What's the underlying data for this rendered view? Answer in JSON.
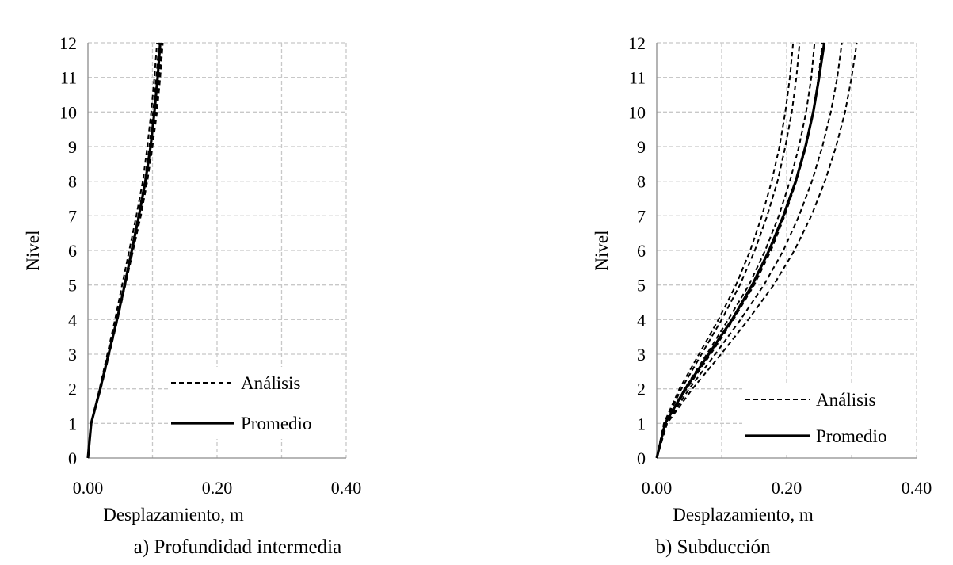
{
  "chart_data": [
    {
      "type": "line",
      "caption": "a) Profundidad intermedia",
      "xlabel": "Desplazamiento, m",
      "ylabel": "Nivel",
      "xlim": [
        0,
        0.4
      ],
      "ylim": [
        0,
        12
      ],
      "x_ticks": [
        "0.00",
        "0.20",
        "0.40"
      ],
      "y_ticks": [
        "0",
        "1",
        "2",
        "3",
        "4",
        "5",
        "6",
        "7",
        "8",
        "9",
        "10",
        "11",
        "12"
      ],
      "grid": "on, dashed",
      "legend_position": "bottom-right",
      "levels": [
        0,
        1,
        2,
        3,
        4,
        5,
        6,
        7,
        8,
        9,
        10,
        11,
        12
      ],
      "series": [
        {
          "name": "Análisis",
          "style": "dashed",
          "values": [
            0,
            0.005,
            0.018,
            0.03,
            0.042,
            0.053,
            0.064,
            0.075,
            0.085,
            0.092,
            0.098,
            0.103,
            0.107
          ]
        },
        {
          "name": "Análisis",
          "style": "dashed",
          "values": [
            0,
            0.005,
            0.019,
            0.032,
            0.044,
            0.056,
            0.067,
            0.078,
            0.088,
            0.095,
            0.101,
            0.106,
            0.11
          ]
        },
        {
          "name": "Análisis",
          "style": "dashed",
          "values": [
            0,
            0.005,
            0.019,
            0.032,
            0.045,
            0.057,
            0.069,
            0.08,
            0.09,
            0.098,
            0.105,
            0.11,
            0.114
          ]
        },
        {
          "name": "Análisis",
          "style": "dashed",
          "values": [
            0,
            0.005,
            0.02,
            0.033,
            0.046,
            0.058,
            0.07,
            0.082,
            0.092,
            0.1,
            0.107,
            0.112,
            0.116
          ]
        },
        {
          "name": "Promedio",
          "style": "solid",
          "values": [
            0,
            0.005,
            0.019,
            0.032,
            0.045,
            0.057,
            0.068,
            0.079,
            0.089,
            0.097,
            0.103,
            0.108,
            0.112
          ]
        }
      ]
    },
    {
      "type": "line",
      "caption": "b) Subducción",
      "xlabel": "Desplazamiento, m",
      "ylabel": "Nivel",
      "xlim": [
        0,
        0.4
      ],
      "ylim": [
        0,
        12
      ],
      "x_ticks": [
        "0.00",
        "0.20",
        "0.40"
      ],
      "y_ticks": [
        "0",
        "1",
        "2",
        "3",
        "4",
        "5",
        "6",
        "7",
        "8",
        "9",
        "10",
        "11",
        "12"
      ],
      "grid": "on, dashed",
      "legend_position": "bottom-right",
      "levels": [
        0,
        1,
        2,
        3,
        4,
        5,
        6,
        7,
        8,
        9,
        10,
        11,
        12
      ],
      "series": [
        {
          "name": "Análisis",
          "style": "dashed",
          "values": [
            0,
            0.011,
            0.035,
            0.065,
            0.095,
            0.122,
            0.144,
            0.162,
            0.177,
            0.189,
            0.198,
            0.205,
            0.21
          ]
        },
        {
          "name": "Análisis",
          "style": "dashed",
          "values": [
            0,
            0.012,
            0.038,
            0.069,
            0.1,
            0.128,
            0.151,
            0.17,
            0.186,
            0.198,
            0.208,
            0.215,
            0.22
          ]
        },
        {
          "name": "Análisis",
          "style": "dashed",
          "values": [
            0,
            0.013,
            0.043,
            0.077,
            0.11,
            0.142,
            0.167,
            0.188,
            0.205,
            0.219,
            0.23,
            0.238,
            0.243
          ]
        },
        {
          "name": "Análisis",
          "style": "dashed",
          "values": [
            0,
            0.014,
            0.046,
            0.083,
            0.118,
            0.15,
            0.176,
            0.197,
            0.215,
            0.23,
            0.241,
            0.249,
            0.255
          ]
        },
        {
          "name": "Análisis",
          "style": "dashed",
          "values": [
            0,
            0.015,
            0.05,
            0.09,
            0.129,
            0.165,
            0.195,
            0.219,
            0.239,
            0.255,
            0.268,
            0.278,
            0.285
          ]
        },
        {
          "name": "Análisis",
          "style": "dashed",
          "values": [
            0,
            0.016,
            0.055,
            0.099,
            0.141,
            0.18,
            0.212,
            0.238,
            0.259,
            0.276,
            0.29,
            0.3,
            0.308
          ]
        },
        {
          "name": "Promedio",
          "style": "solid",
          "values": [
            0,
            0.013,
            0.044,
            0.08,
            0.116,
            0.147,
            0.173,
            0.195,
            0.214,
            0.229,
            0.241,
            0.25,
            0.258
          ]
        }
      ]
    }
  ]
}
